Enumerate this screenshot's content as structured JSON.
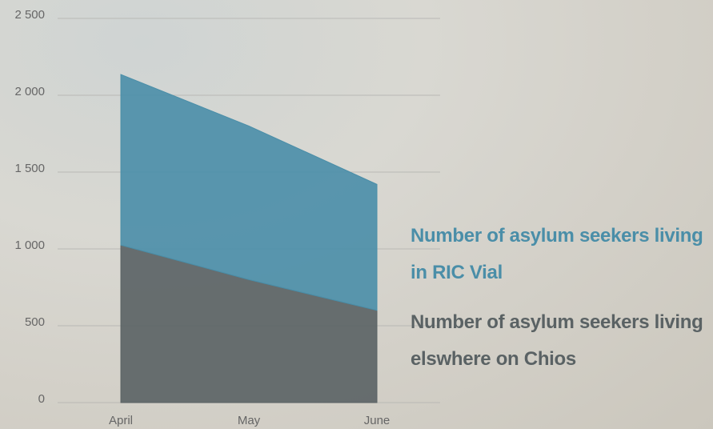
{
  "chart_data": {
    "type": "stacked-area",
    "categories": [
      "April",
      "May",
      "June"
    ],
    "series": [
      {
        "name": "Number of asylum seekers living in RIC Vial",
        "color": "#4a8ea8",
        "values": [
          1110,
          1000,
          820
        ]
      },
      {
        "name": "Number of asylum seekers living elswhere on Chios",
        "color": "#5a6264",
        "values": [
          1025,
          800,
          600
        ]
      }
    ],
    "ylim": [
      0,
      2500
    ],
    "yticks": [
      0,
      500,
      {
        "value": 1000,
        "label": "1 000"
      },
      {
        "value": 1500,
        "label": "1 500"
      },
      {
        "value": 2000,
        "label": "2 000"
      },
      {
        "value": 2500,
        "label": "2 500"
      }
    ],
    "grid": true
  }
}
